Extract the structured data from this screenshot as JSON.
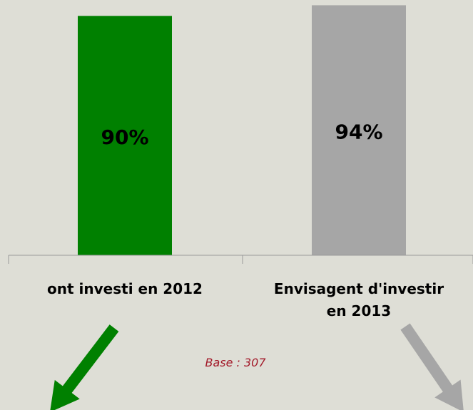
{
  "chart_data": {
    "type": "bar",
    "categories": [
      "ont investi en 2012",
      "Envisagent d'investir en 2013"
    ],
    "category_lines": [
      [
        "ont investi en 2012"
      ],
      [
        "Envisagent d'investir",
        "en 2013"
      ]
    ],
    "values": [
      90,
      94
    ],
    "data_labels": [
      "90%",
      "94%"
    ],
    "colors": [
      "#008000",
      "#a6a6a6"
    ],
    "ylim": [
      0,
      100
    ],
    "grid": false,
    "note": "Base : 307",
    "note_color": "#a31a2a"
  }
}
